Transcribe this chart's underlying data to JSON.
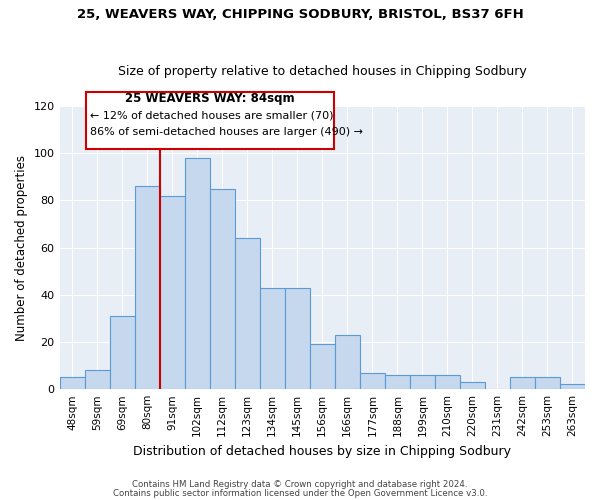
{
  "title1": "25, WEAVERS WAY, CHIPPING SODBURY, BRISTOL, BS37 6FH",
  "title2": "Size of property relative to detached houses in Chipping Sodbury",
  "xlabel": "Distribution of detached houses by size in Chipping Sodbury",
  "ylabel": "Number of detached properties",
  "bin_labels": [
    "48sqm",
    "59sqm",
    "69sqm",
    "80sqm",
    "91sqm",
    "102sqm",
    "112sqm",
    "123sqm",
    "134sqm",
    "145sqm",
    "156sqm",
    "166sqm",
    "177sqm",
    "188sqm",
    "199sqm",
    "210sqm",
    "220sqm",
    "231sqm",
    "242sqm",
    "253sqm",
    "263sqm"
  ],
  "bar_values": [
    5,
    8,
    31,
    86,
    82,
    98,
    85,
    64,
    43,
    43,
    19,
    23,
    7,
    6,
    6,
    6,
    3,
    0,
    5,
    5,
    2
  ],
  "bar_color": "#c5d8ed",
  "bar_edge_color": "#5b9bd5",
  "vline_x": 3.5,
  "marker_label": "25 WEAVERS WAY: 84sqm",
  "annotation_line1": "← 12% of detached houses are smaller (70)",
  "annotation_line2": "86% of semi-detached houses are larger (490) →",
  "vline_color": "#cc0000",
  "box_color": "#cc0000",
  "ylim": [
    0,
    120
  ],
  "yticks": [
    0,
    20,
    40,
    60,
    80,
    100,
    120
  ],
  "footer1": "Contains HM Land Registry data © Crown copyright and database right 2024.",
  "footer2": "Contains public sector information licensed under the Open Government Licence v3.0.",
  "bg_color": "#e8eef5"
}
